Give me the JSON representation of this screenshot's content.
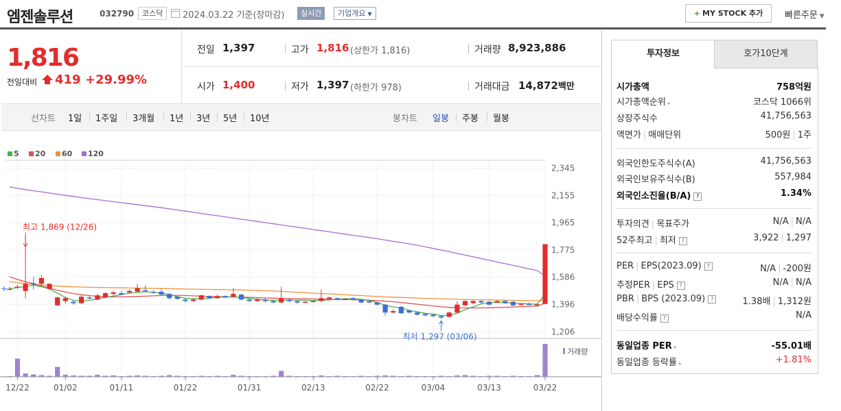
{
  "header": {
    "stock_name": "엠젠솔루션",
    "stock_code": "032790",
    "market_badge": "코스닥",
    "date_text": "2024.03.22 기준(장마감)",
    "realtime_badge": "실시간",
    "overview_badge": "기업개요",
    "mystock_plus": "+",
    "mystock_label": "MY STOCK 추가",
    "quick_order": "빠른주문"
  },
  "price": {
    "current": "1,816",
    "change_label": "전일대비",
    "change_value": "419",
    "change_rate": "+29.99%",
    "direction": "up"
  },
  "quote": {
    "prev_close_label": "전일",
    "prev_close": "1,397",
    "high_label": "고가",
    "high": "1,816",
    "upper_limit": "(상한가 1,816)",
    "volume_label": "거래량",
    "volume": "8,923,886",
    "open_label": "시가",
    "open": "1,400",
    "low_label": "저가",
    "low": "1,397",
    "lower_limit": "(하한가 978)",
    "amount_label": "거래대금",
    "amount": "14,872",
    "amount_unit": "백만"
  },
  "period_bar": {
    "line_label": "선차트",
    "line_periods": [
      "1일",
      "1주일",
      "3개월",
      "1년",
      "3년",
      "5년",
      "10년"
    ],
    "candle_label": "봉차트",
    "candle_periods": [
      "일봉",
      "주봉",
      "월봉"
    ],
    "active_candle": "일봉"
  },
  "colors": {
    "up": "#e32c2c",
    "down": "#3a6fd8",
    "ma5": "#4caf50",
    "ma20": "#e05050",
    "ma60": "#f0923a",
    "ma120": "#a26fd6",
    "volume": "#9b86cf"
  },
  "chart_data": {
    "type": "candlestick",
    "legend": [
      {
        "name": "5",
        "color": "#4caf50"
      },
      {
        "name": "20",
        "color": "#e05050"
      },
      {
        "name": "60",
        "color": "#f0923a"
      },
      {
        "name": "120",
        "color": "#a26fd6"
      }
    ],
    "y_ticks": [
      "2,345",
      "2,155",
      "1,965",
      "1,775",
      "1,586",
      "1,396",
      "1,206"
    ],
    "y_tick_values": [
      2345,
      2155,
      1965,
      1775,
      1586,
      1396,
      1206
    ],
    "ylim": [
      1160,
      2400
    ],
    "x_ticks": [
      "12/22",
      "01/02",
      "01/11",
      "01/22",
      "01/31",
      "02/13",
      "02/22",
      "03/04",
      "03/13",
      "03/22"
    ],
    "x_tick_index": [
      1,
      7,
      14,
      22,
      30,
      38,
      46,
      53,
      60,
      67
    ],
    "high_annotation": "최고 1,869 (12/26)",
    "high_index": 2,
    "high_value": 1869,
    "low_annotation": "최저 1,297 (03/06)",
    "low_index": 54,
    "low_value": 1297,
    "volume_label": "거래량",
    "candles": [
      {
        "o": 1505,
        "c": 1505,
        "h": 1520,
        "l": 1495
      },
      {
        "o": 1520,
        "c": 1520,
        "h": 1535,
        "l": 1505
      },
      {
        "o": 1490,
        "c": 1540,
        "h": 1869,
        "l": 1440
      },
      {
        "o": 1545,
        "c": 1535,
        "h": 1590,
        "l": 1500
      },
      {
        "o": 1540,
        "c": 1580,
        "h": 1600,
        "l": 1525
      },
      {
        "o": 1505,
        "c": 1540,
        "h": 1545,
        "l": 1495
      },
      {
        "o": 1390,
        "c": 1445,
        "h": 1450,
        "l": 1385
      },
      {
        "o": 1420,
        "c": 1440,
        "h": 1450,
        "l": 1405
      },
      {
        "o": 1415,
        "c": 1405,
        "h": 1425,
        "l": 1395
      },
      {
        "o": 1405,
        "c": 1450,
        "h": 1460,
        "l": 1400
      },
      {
        "o": 1445,
        "c": 1440,
        "h": 1455,
        "l": 1430
      },
      {
        "o": 1430,
        "c": 1460,
        "h": 1470,
        "l": 1425
      },
      {
        "o": 1445,
        "c": 1475,
        "h": 1480,
        "l": 1440
      },
      {
        "o": 1470,
        "c": 1480,
        "h": 1490,
        "l": 1460
      },
      {
        "o": 1475,
        "c": 1465,
        "h": 1490,
        "l": 1460
      },
      {
        "o": 1480,
        "c": 1490,
        "h": 1500,
        "l": 1470
      },
      {
        "o": 1485,
        "c": 1510,
        "h": 1540,
        "l": 1480
      },
      {
        "o": 1495,
        "c": 1490,
        "h": 1530,
        "l": 1480
      },
      {
        "o": 1485,
        "c": 1480,
        "h": 1495,
        "l": 1470
      },
      {
        "o": 1485,
        "c": 1465,
        "h": 1505,
        "l": 1460
      },
      {
        "o": 1470,
        "c": 1440,
        "h": 1475,
        "l": 1430
      },
      {
        "o": 1450,
        "c": 1435,
        "h": 1455,
        "l": 1430
      },
      {
        "o": 1430,
        "c": 1420,
        "h": 1440,
        "l": 1410
      },
      {
        "o": 1420,
        "c": 1430,
        "h": 1440,
        "l": 1415
      },
      {
        "o": 1430,
        "c": 1460,
        "h": 1465,
        "l": 1425
      },
      {
        "o": 1455,
        "c": 1440,
        "h": 1460,
        "l": 1435
      },
      {
        "o": 1440,
        "c": 1455,
        "h": 1465,
        "l": 1435
      },
      {
        "o": 1455,
        "c": 1445,
        "h": 1460,
        "l": 1440
      },
      {
        "o": 1450,
        "c": 1470,
        "h": 1510,
        "l": 1445
      },
      {
        "o": 1465,
        "c": 1430,
        "h": 1470,
        "l": 1425
      },
      {
        "o": 1430,
        "c": 1420,
        "h": 1435,
        "l": 1415
      },
      {
        "o": 1420,
        "c": 1430,
        "h": 1440,
        "l": 1415
      },
      {
        "o": 1430,
        "c": 1420,
        "h": 1440,
        "l": 1410
      },
      {
        "o": 1420,
        "c": 1410,
        "h": 1430,
        "l": 1405
      },
      {
        "o": 1410,
        "c": 1440,
        "h": 1520,
        "l": 1405
      },
      {
        "o": 1430,
        "c": 1420,
        "h": 1435,
        "l": 1410
      },
      {
        "o": 1420,
        "c": 1410,
        "h": 1425,
        "l": 1400
      },
      {
        "o": 1410,
        "c": 1415,
        "h": 1420,
        "l": 1405
      },
      {
        "o": 1415,
        "c": 1420,
        "h": 1425,
        "l": 1410
      },
      {
        "o": 1420,
        "c": 1440,
        "h": 1500,
        "l": 1415
      },
      {
        "o": 1435,
        "c": 1445,
        "h": 1450,
        "l": 1430
      },
      {
        "o": 1440,
        "c": 1430,
        "h": 1445,
        "l": 1425
      },
      {
        "o": 1430,
        "c": 1435,
        "h": 1440,
        "l": 1425
      },
      {
        "o": 1440,
        "c": 1430,
        "h": 1445,
        "l": 1425
      },
      {
        "o": 1430,
        "c": 1410,
        "h": 1435,
        "l": 1405
      },
      {
        "o": 1420,
        "c": 1410,
        "h": 1425,
        "l": 1405
      },
      {
        "o": 1410,
        "c": 1395,
        "h": 1415,
        "l": 1390
      },
      {
        "o": 1395,
        "c": 1340,
        "h": 1400,
        "l": 1320
      },
      {
        "o": 1340,
        "c": 1350,
        "h": 1360,
        "l": 1335
      },
      {
        "o": 1380,
        "c": 1335,
        "h": 1385,
        "l": 1330
      },
      {
        "o": 1355,
        "c": 1340,
        "h": 1360,
        "l": 1335
      },
      {
        "o": 1340,
        "c": 1325,
        "h": 1345,
        "l": 1320
      },
      {
        "o": 1330,
        "c": 1320,
        "h": 1335,
        "l": 1315
      },
      {
        "o": 1325,
        "c": 1315,
        "h": 1330,
        "l": 1310
      },
      {
        "o": 1315,
        "c": 1305,
        "h": 1320,
        "l": 1297
      },
      {
        "o": 1310,
        "c": 1340,
        "h": 1345,
        "l": 1305
      },
      {
        "o": 1340,
        "c": 1395,
        "h": 1420,
        "l": 1335
      },
      {
        "o": 1390,
        "c": 1420,
        "h": 1425,
        "l": 1385
      },
      {
        "o": 1405,
        "c": 1420,
        "h": 1425,
        "l": 1400
      },
      {
        "o": 1420,
        "c": 1410,
        "h": 1425,
        "l": 1400
      },
      {
        "o": 1415,
        "c": 1395,
        "h": 1420,
        "l": 1390
      },
      {
        "o": 1410,
        "c": 1420,
        "h": 1425,
        "l": 1405
      },
      {
        "o": 1420,
        "c": 1405,
        "h": 1425,
        "l": 1400
      },
      {
        "o": 1415,
        "c": 1390,
        "h": 1420,
        "l": 1385
      },
      {
        "o": 1395,
        "c": 1400,
        "h": 1405,
        "l": 1390
      },
      {
        "o": 1400,
        "c": 1395,
        "h": 1410,
        "l": 1390
      },
      {
        "o": 1395,
        "c": 1397,
        "h": 1405,
        "l": 1390
      },
      {
        "o": 1400,
        "c": 1816,
        "h": 1816,
        "l": 1397
      }
    ],
    "volumes": [
      2,
      55,
      10,
      7,
      5,
      3,
      30,
      6,
      4,
      3,
      3,
      6,
      3,
      4,
      2,
      3,
      4,
      3,
      2,
      3,
      5,
      3,
      2,
      2,
      3,
      2,
      3,
      2,
      6,
      3,
      2,
      2,
      2,
      3,
      18,
      3,
      2,
      2,
      2,
      4,
      2,
      3,
      2,
      2,
      3,
      2,
      3,
      4,
      3,
      2,
      3,
      2,
      2,
      2,
      3,
      2,
      4,
      5,
      3,
      2,
      3,
      3,
      2,
      3,
      2,
      2,
      5,
      100
    ],
    "ma5": [
      1505,
      1515,
      1520,
      1530,
      1520,
      1505,
      1475,
      1445,
      1425,
      1420,
      1425,
      1435,
      1445,
      1455,
      1465,
      1475,
      1480,
      1485,
      1480,
      1475,
      1465,
      1450,
      1440,
      1435,
      1435,
      1440,
      1445,
      1448,
      1450,
      1445,
      1438,
      1432,
      1428,
      1425,
      1425,
      1427,
      1427,
      1425,
      1423,
      1425,
      1428,
      1433,
      1436,
      1437,
      1432,
      1425,
      1410,
      1390,
      1380,
      1370,
      1355,
      1345,
      1335,
      1330,
      1320,
      1320,
      1335,
      1360,
      1380,
      1400,
      1410,
      1410,
      1410,
      1405,
      1403,
      1400,
      1398,
      1470
    ],
    "ma20": [
      1590,
      1570,
      1555,
      1540,
      1525,
      1510,
      1495,
      1483,
      1472,
      1464,
      1458,
      1453,
      1450,
      1449,
      1449,
      1450,
      1452,
      1454,
      1456,
      1458,
      1460,
      1460,
      1458,
      1456,
      1454,
      1452,
      1450,
      1449,
      1448,
      1447,
      1446,
      1444,
      1442,
      1440,
      1438,
      1437,
      1436,
      1435,
      1434,
      1433,
      1432,
      1431,
      1430,
      1429,
      1428,
      1426,
      1423,
      1419,
      1415,
      1410,
      1404,
      1398,
      1392,
      1386,
      1380,
      1376,
      1373,
      1372,
      1372,
      1372,
      1373,
      1375,
      1377,
      1379,
      1381,
      1383,
      1385,
      1405
    ],
    "ma60": [
      1555,
      1548,
      1542,
      1536,
      1532,
      1528,
      1524,
      1521,
      1519,
      1517,
      1516,
      1515,
      1514,
      1513,
      1512,
      1511,
      1510,
      1509,
      1508,
      1507,
      1506,
      1505,
      1504,
      1503,
      1502,
      1501,
      1500,
      1499,
      1498,
      1497,
      1496,
      1494,
      1492,
      1490,
      1487,
      1484,
      1481,
      1478,
      1475,
      1472,
      1470,
      1467,
      1464,
      1461,
      1458,
      1455,
      1452,
      1449,
      1447,
      1445,
      1443,
      1441,
      1439,
      1437,
      1435,
      1434,
      1432,
      1431,
      1430,
      1429,
      1428,
      1427,
      1426,
      1425,
      1424,
      1423,
      1422,
      1428
    ],
    "ma120": [
      2215,
      2205,
      2196,
      2188,
      2180,
      2172,
      2164,
      2156,
      2148,
      2140,
      2133,
      2126,
      2119,
      2112,
      2105,
      2098,
      2091,
      2084,
      2077,
      2070,
      2062,
      2054,
      2046,
      2038,
      2030,
      2022,
      2014,
      2006,
      1998,
      1990,
      1982,
      1974,
      1966,
      1958,
      1950,
      1942,
      1934,
      1926,
      1918,
      1910,
      1902,
      1894,
      1886,
      1878,
      1870,
      1862,
      1854,
      1845,
      1836,
      1827,
      1818,
      1808,
      1797,
      1786,
      1775,
      1764,
      1752,
      1740,
      1728,
      1716,
      1704,
      1692,
      1680,
      1668,
      1656,
      1644,
      1632,
      1595
    ]
  },
  "tabs": {
    "invest_info": "투자정보",
    "order_book": "호가10단계"
  },
  "info": {
    "market_cap_label": "시가총액",
    "market_cap": "758억원",
    "market_cap_rank_label": "시가총액순위",
    "market_cap_rank": "코스닥 1066위",
    "listed_shares_label": "상장주식수",
    "listed_shares": "41,756,563",
    "par_value_label": "액면가",
    "trade_unit_label": "매매단위",
    "par_value": "500원",
    "trade_unit": "1주",
    "foreign_limit_label": "외국인한도주식수(A)",
    "foreign_limit": "41,756,563",
    "foreign_hold_label": "외국인보유주식수(B)",
    "foreign_hold": "557,984",
    "foreign_rate_label": "외국인소진율(B/A)",
    "foreign_rate": "1.34%",
    "opinion_label": "투자의견",
    "target_label": "목표주가",
    "opinion": "N/A",
    "target": "N/A",
    "w52_high_label": "52주최고",
    "w52_low_label": "최저",
    "w52_high": "3,922",
    "w52_low": "1,297",
    "per_label": "PER",
    "eps_label": "EPS(2023.09)",
    "per": "N/A",
    "eps": "-200원",
    "est_per_label": "추정PER",
    "est_eps_label": "EPS",
    "est_per": "N/A",
    "est_eps": "N/A",
    "pbr_label": "PBR",
    "bps_label": "BPS (2023.09)",
    "pbr": "1.38배",
    "bps": "1,312원",
    "dividend_label": "배당수익률",
    "dividend": "N/A",
    "sector_per_label": "동일업종 PER",
    "sector_per": "-55.01배",
    "sector_rate_label": "동일업종 등락률",
    "sector_rate": "+1.81%",
    "help_glyph": "?",
    "more_glyph": "▸"
  }
}
